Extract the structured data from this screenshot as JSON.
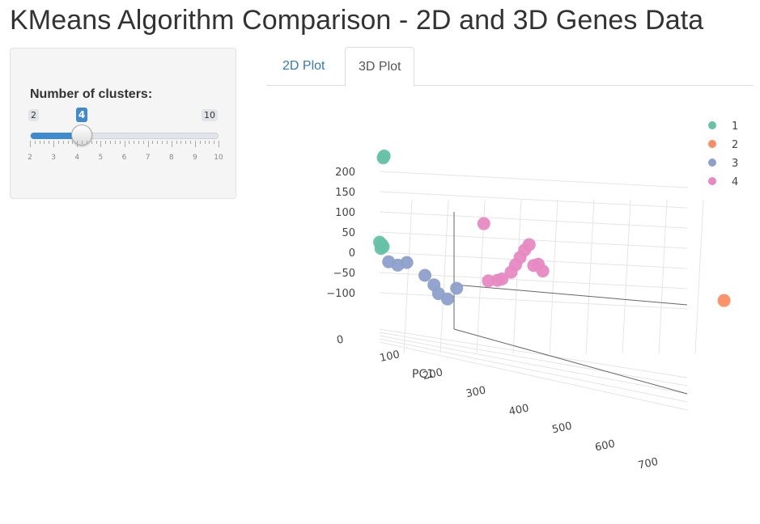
{
  "page": {
    "title": "KMeans Algorithm Comparison - 2D and 3D Genes Data"
  },
  "sidebar": {
    "slider": {
      "label": "Number of clusters:",
      "min": 2,
      "max": 10,
      "value": 4,
      "min_label": "2",
      "max_label": "10",
      "value_label": "4",
      "tick_labels": [
        "2",
        "3",
        "4",
        "5",
        "6",
        "7",
        "8",
        "9",
        "10"
      ]
    }
  },
  "tabs": [
    {
      "label": "2D Plot",
      "active": false
    },
    {
      "label": "3D Plot",
      "active": true
    }
  ],
  "chart_data": {
    "type": "scatter",
    "title": "",
    "xlabel": "PC1",
    "zlabel": "",
    "z_ticks": [
      "200",
      "150",
      "100",
      "50",
      "0",
      "−50",
      "−100"
    ],
    "x_ticks": [
      "0",
      "100",
      "200",
      "300",
      "400",
      "500",
      "600",
      "700"
    ],
    "legend_position": "top-right",
    "series": [
      {
        "name": "1",
        "color": "#66c2a5",
        "points": [
          [
            8,
            235
          ],
          [
            10,
            240
          ],
          [
            0,
            25
          ],
          [
            5,
            20
          ],
          [
            3,
            10
          ],
          [
            8,
            15
          ]
        ]
      },
      {
        "name": "2",
        "color": "#fc8d62",
        "points": [
          [
            760,
            10
          ]
        ]
      },
      {
        "name": "3",
        "color": "#8da0cb",
        "points": [
          [
            20,
            -20
          ],
          [
            40,
            -25
          ],
          [
            60,
            -15
          ],
          [
            100,
            -40
          ],
          [
            120,
            -60
          ],
          [
            130,
            -80
          ],
          [
            150,
            -90
          ],
          [
            170,
            -60
          ]
        ]
      },
      {
        "name": "4",
        "color": "#e78ac3",
        "points": [
          [
            230,
            110
          ],
          [
            240,
            -30
          ],
          [
            260,
            -25
          ],
          [
            270,
            -20
          ],
          [
            290,
            0
          ],
          [
            300,
            20
          ],
          [
            310,
            40
          ],
          [
            320,
            60
          ],
          [
            330,
            75
          ],
          [
            340,
            25
          ],
          [
            350,
            30
          ],
          [
            360,
            15
          ]
        ]
      }
    ]
  }
}
